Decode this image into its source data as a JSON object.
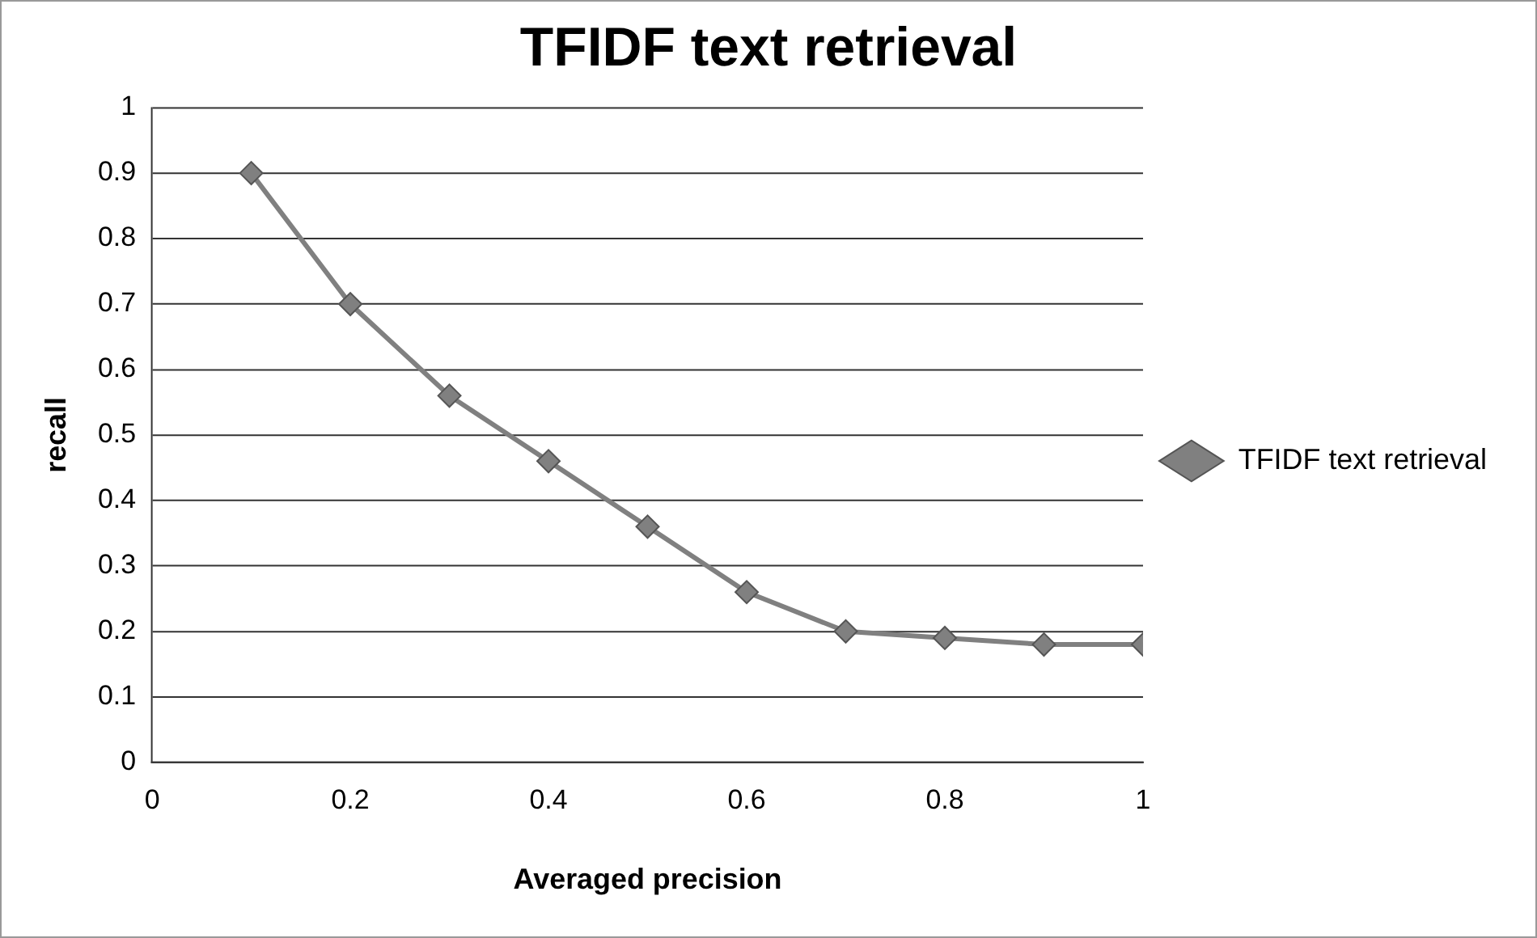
{
  "chart_data": {
    "type": "line",
    "title": "TFIDF text retrieval",
    "xlabel": "Averaged precision",
    "ylabel": "recall",
    "x": [
      0.1,
      0.2,
      0.3,
      0.4,
      0.5,
      0.6,
      0.7,
      0.8,
      0.9,
      1
    ],
    "series": [
      {
        "name": "TFIDF text retrieval",
        "color": "#808080",
        "values": [
          0.9,
          0.7,
          0.56,
          0.46,
          0.36,
          0.26,
          0.2,
          0.19,
          0.18,
          0.18
        ]
      }
    ],
    "xlim": [
      0,
      1
    ],
    "xticks": [
      0,
      0.2,
      0.4,
      0.6,
      0.8,
      1
    ],
    "ylim": [
      0,
      1
    ],
    "yticks": [
      0,
      0.1,
      0.2,
      0.3,
      0.4,
      0.5,
      0.6,
      0.7,
      0.8,
      0.9,
      1
    ],
    "grid": "y",
    "legend": "right",
    "marker": "diamond",
    "line_style": "solid"
  }
}
